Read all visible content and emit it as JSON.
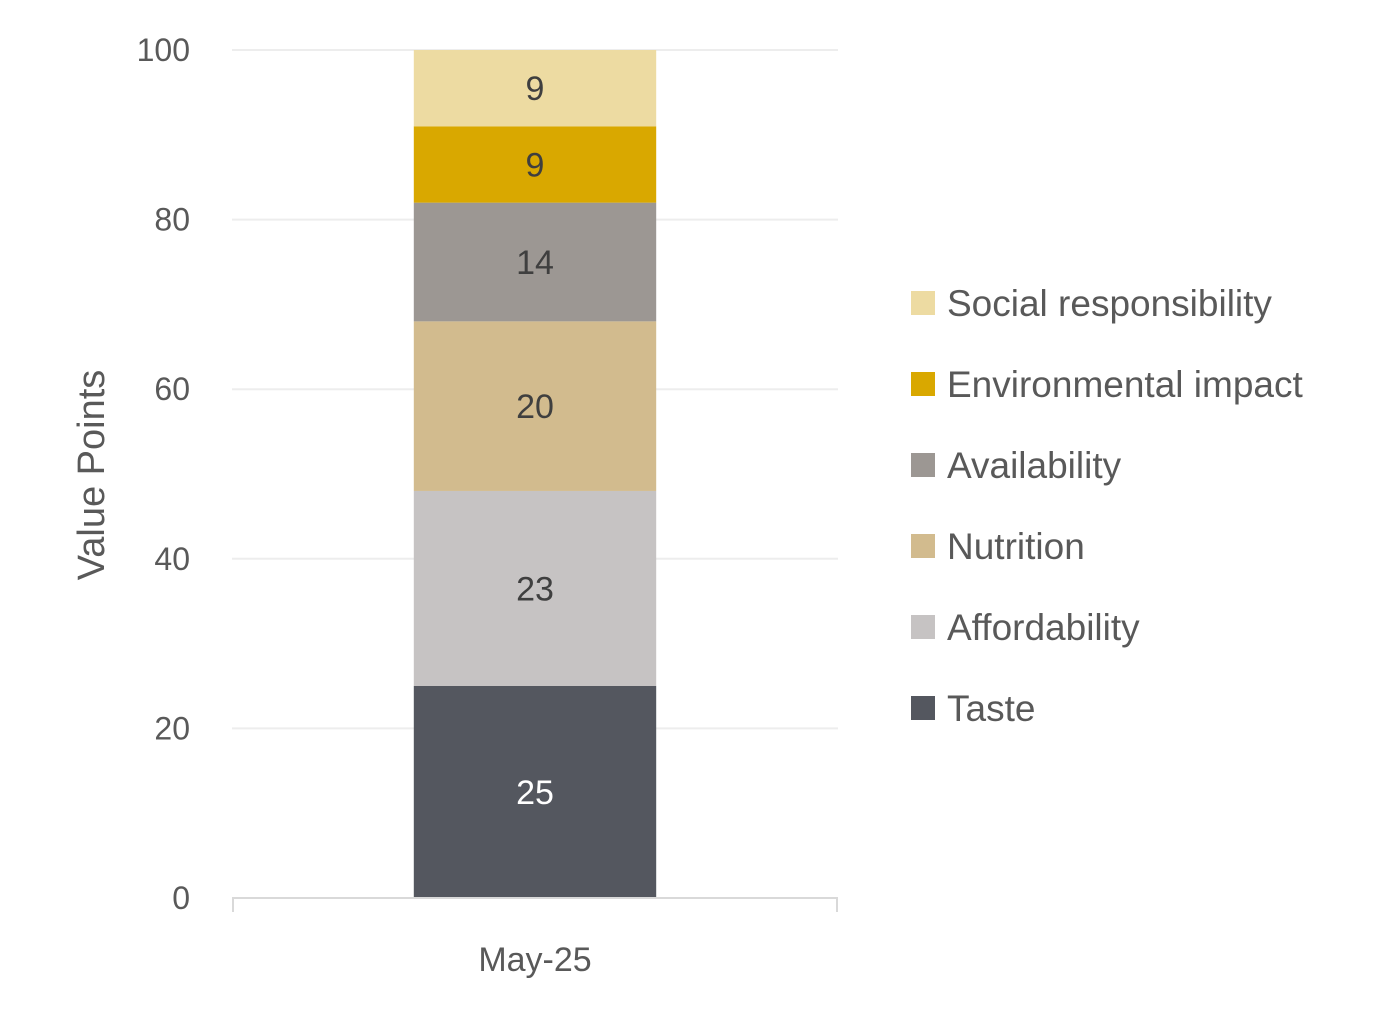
{
  "chart_data": {
    "type": "bar",
    "stacked": true,
    "categories": [
      "May-25"
    ],
    "series": [
      {
        "name": "Taste",
        "values": [
          25
        ],
        "color": "#54575f",
        "label_color": "#ffffff"
      },
      {
        "name": "Affordability",
        "values": [
          23
        ],
        "color": "#c6c3c3",
        "label_color": "#3f3f3f"
      },
      {
        "name": "Nutrition",
        "values": [
          20
        ],
        "color": "#d2bb8e",
        "label_color": "#3f3f3f"
      },
      {
        "name": "Availability",
        "values": [
          14
        ],
        "color": "#9c9793",
        "label_color": "#3f3f3f"
      },
      {
        "name": "Environmental impact",
        "values": [
          9
        ],
        "color": "#d9a800",
        "label_color": "#3f3f3f"
      },
      {
        "name": "Social responsibility",
        "values": [
          9
        ],
        "color": "#eddba2",
        "label_color": "#3f3f3f"
      }
    ],
    "ylabel": "Value Points",
    "xlabel": "",
    "ylim": [
      0,
      100
    ],
    "yticks": [
      0,
      20,
      40,
      60,
      80,
      100
    ],
    "grid": true,
    "legend_position": "right"
  }
}
